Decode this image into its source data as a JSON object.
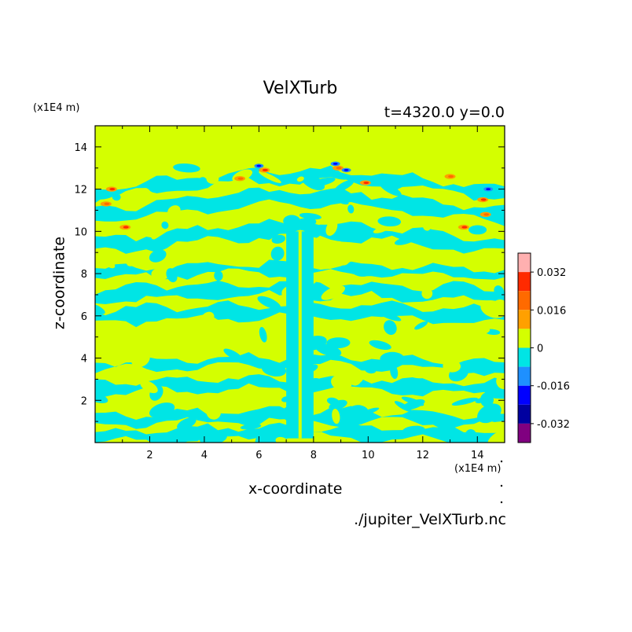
{
  "chart_data": {
    "type": "heatmap",
    "title": "VelXTurb",
    "time_label": "t=4320.0 y=0.0",
    "xlabel": "x-coordinate",
    "ylabel": "z-coordinate",
    "x_scale_note": "(x1E4 m)",
    "y_scale_note": "(x1E4 m)",
    "file_label": "./jupiter_VelXTurb.nc",
    "xlim": [
      0,
      15
    ],
    "ylim": [
      0,
      15
    ],
    "x_ticks": [
      2,
      4,
      6,
      8,
      10,
      12,
      14
    ],
    "y_ticks": [
      2,
      4,
      6,
      8,
      10,
      12,
      14
    ],
    "colorbar": {
      "ticks": [
        "0.032",
        "0.016",
        "0",
        "-0.016",
        "-0.032"
      ],
      "tick_values": [
        0.032,
        0.016,
        0,
        -0.016,
        -0.032
      ],
      "range": [
        -0.04,
        0.04
      ],
      "levels": [
        {
          "from": 0.032,
          "to": 0.04,
          "color": "#ffb0b0"
        },
        {
          "from": 0.024,
          "to": 0.032,
          "color": "#ff2a00"
        },
        {
          "from": 0.016,
          "to": 0.024,
          "color": "#ff6a00"
        },
        {
          "from": 0.008,
          "to": 0.016,
          "color": "#ffa000"
        },
        {
          "from": 0.0,
          "to": 0.008,
          "color": "#d4ff00"
        },
        {
          "from": -0.008,
          "to": 0.0,
          "color": "#00e5e5"
        },
        {
          "from": -0.016,
          "to": -0.008,
          "color": "#1e90ff"
        },
        {
          "from": -0.024,
          "to": -0.016,
          "color": "#0000ff"
        },
        {
          "from": -0.032,
          "to": -0.024,
          "color": "#0000a0"
        },
        {
          "from": -0.04,
          "to": -0.032,
          "color": "#800080"
        }
      ]
    },
    "background_color": "#d4ff00",
    "negative_color": "#00e5e5",
    "field_features": {
      "horizontal_bands": [
        {
          "y0": 0.1,
          "y1": 0.6
        },
        {
          "y0": 0.9,
          "y1": 1.4
        },
        {
          "y0": 2.4,
          "y1": 2.9
        },
        {
          "y0": 3.5,
          "y1": 3.9
        },
        {
          "y0": 5.8,
          "y1": 6.4
        },
        {
          "y0": 6.8,
          "y1": 7.4
        },
        {
          "y0": 7.9,
          "y1": 8.3
        },
        {
          "y0": 9.3,
          "y1": 9.9
        },
        {
          "y0": 10.8,
          "y1": 11.4
        },
        {
          "y0": 11.9,
          "y1": 12.4
        }
      ],
      "central_column": {
        "x0": 7.0,
        "x1": 8.0,
        "y0": 0.2,
        "y1": 10.0
      },
      "positive_blobs": [
        {
          "x": 0.6,
          "y": 12.0
        },
        {
          "x": 0.4,
          "y": 11.3
        },
        {
          "x": 1.1,
          "y": 10.2
        },
        {
          "x": 5.3,
          "y": 12.5
        },
        {
          "x": 6.2,
          "y": 12.9
        },
        {
          "x": 8.9,
          "y": 13.0
        },
        {
          "x": 9.9,
          "y": 12.3
        },
        {
          "x": 13.0,
          "y": 12.6
        },
        {
          "x": 14.2,
          "y": 11.5
        },
        {
          "x": 14.3,
          "y": 10.8
        },
        {
          "x": 13.5,
          "y": 10.2
        }
      ],
      "negative_blobs": [
        {
          "x": 6.0,
          "y": 13.1
        },
        {
          "x": 9.2,
          "y": 12.9
        },
        {
          "x": 14.4,
          "y": 12.0
        },
        {
          "x": 8.8,
          "y": 13.2
        }
      ]
    }
  }
}
